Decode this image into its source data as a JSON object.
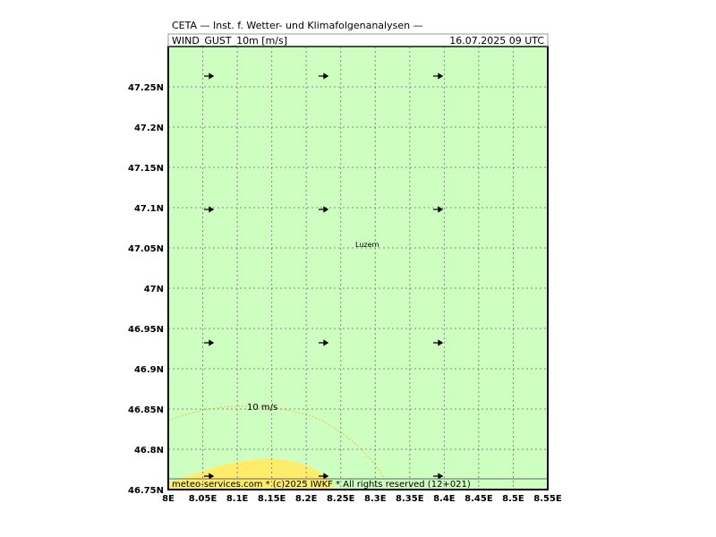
{
  "header": {
    "title": "CETA — Inst. f. Wetter- und Klimafolgenanalysen —",
    "variable": "WIND_GUST_10m [m/s]",
    "valid": "16.07.2025 09 UTC"
  },
  "map": {
    "x_labels": [
      "8E",
      "8.05E",
      "8.1E",
      "8.15E",
      "8.2E",
      "8.25E",
      "8.3E",
      "8.35E",
      "8.4E",
      "8.45E",
      "8.5E",
      "8.55E"
    ],
    "y_labels": [
      "46.75N",
      "46.8N",
      "46.85N",
      "46.9N",
      "46.95N",
      "47N",
      "47.05N",
      "47.1N",
      "47.15N",
      "47.2N",
      "47.25N"
    ],
    "city": "Luzern",
    "contour_label": "10 m/s"
  },
  "footer": "meteo-services.com * (c)2025 IWKF * All rights reserved (12+021)"
}
